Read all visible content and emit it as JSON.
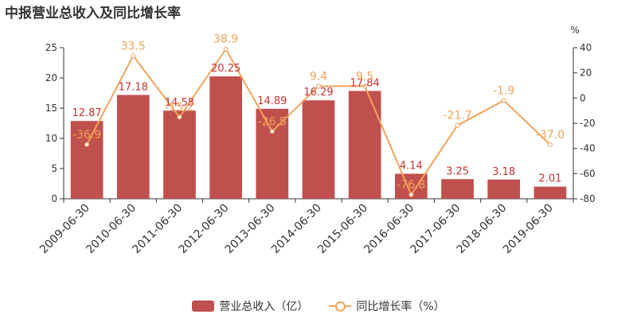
{
  "chart_data": {
    "type": "bar",
    "title": "中报营业总收入及同比增长率",
    "categories": [
      "2009-06-30",
      "2010-06-30",
      "2011-06-30",
      "2012-06-30",
      "2013-06-30",
      "2014-06-30",
      "2015-06-30",
      "2016-06-30",
      "2017-06-30",
      "2018-06-30",
      "2019-06-30"
    ],
    "series": [
      {
        "name": "营业总收入（亿）",
        "type": "bar",
        "axis": "left",
        "color": "#c0504d",
        "values": [
          12.87,
          17.18,
          14.58,
          20.25,
          14.89,
          16.29,
          17.84,
          4.14,
          3.25,
          3.18,
          2.01
        ]
      },
      {
        "name": "同比增长率（%）",
        "type": "line",
        "axis": "right",
        "color": "#f3a35a",
        "values": [
          -36.9,
          33.5,
          -15.2,
          38.9,
          -26.5,
          9.4,
          9.5,
          -76.8,
          -21.7,
          -1.9,
          -37.0
        ]
      }
    ],
    "yleft": {
      "lim": [
        0,
        25
      ],
      "ticks": [
        0,
        5,
        10,
        15,
        20,
        25
      ]
    },
    "yright": {
      "lim": [
        -80,
        40
      ],
      "ticks": [
        -80,
        -60,
        -40,
        -20,
        0,
        20,
        40
      ],
      "unit": "%"
    },
    "grid": false,
    "legend_position": "bottom-center"
  }
}
